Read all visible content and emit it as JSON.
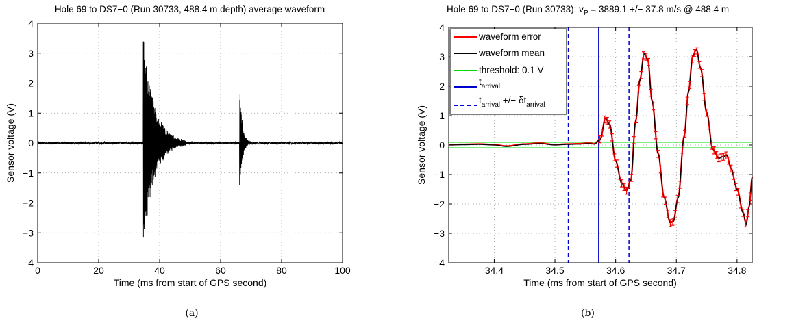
{
  "chart_data": [
    {
      "type": "line",
      "title": "Hole 69 to DS7−0 (Run 30733, 488.4 m depth) average waveform",
      "xlabel": "Time (ms from start of GPS second)",
      "ylabel": "Sensor voltage (V)",
      "xlim": [
        0,
        100
      ],
      "ylim": [
        -4,
        4
      ],
      "xticks": [
        "0",
        "20",
        "40",
        "60",
        "80",
        "100"
      ],
      "yticks": [
        "4",
        "3",
        "2",
        "1",
        "0",
        "−1",
        "−2",
        "−3",
        "−4"
      ],
      "grid": true,
      "series": [
        {
          "color": "#000000",
          "noise_amplitude": 0.04,
          "bursts": [
            {
              "start": 34.6,
              "peak_max": 3.7,
              "peak_min": -3.55,
              "decay_ms": 3.5,
              "duration_ms": 14
            },
            {
              "start": 66.2,
              "peak_max": 2.05,
              "peak_min": -1.65,
              "decay_ms": 0.9,
              "duration_ms": 4
            }
          ]
        }
      ],
      "caption": "(a)"
    },
    {
      "type": "line",
      "title": "Hole 69 to DS7−0 (Run 30733): v",
      "title_sub": "P",
      "title_rest": " = 3889.1 +/− 37.8 m/s @ 488.4 m",
      "xlabel": "Time (ms from start of GPS second)",
      "ylabel": "Sensor voltage (V)",
      "xlim": [
        34.325,
        34.825
      ],
      "ylim": [
        -4,
        4
      ],
      "xticks": [
        "34.4",
        "34.5",
        "34.6",
        "34.7",
        "34.8"
      ],
      "yticks": [
        "4",
        "3",
        "2",
        "1",
        "0",
        "−1",
        "−2",
        "−3",
        "−4"
      ],
      "grid": true,
      "threshold": 0.1,
      "t_arrival": 34.572,
      "dt_arrival": 0.05,
      "error_half_width": 0.12,
      "waveform_mean": {
        "color": "#000000",
        "points": [
          [
            34.325,
            0.0
          ],
          [
            34.35,
            0.01
          ],
          [
            34.375,
            0.02
          ],
          [
            34.4,
            0.0
          ],
          [
            34.42,
            -0.05
          ],
          [
            34.45,
            0.02
          ],
          [
            34.475,
            0.05
          ],
          [
            34.5,
            0.0
          ],
          [
            34.52,
            0.02
          ],
          [
            34.54,
            0.03
          ],
          [
            34.555,
            0.05
          ],
          [
            34.565,
            0.03
          ],
          [
            34.575,
            0.2
          ],
          [
            34.583,
            0.9
          ],
          [
            34.59,
            0.7
          ],
          [
            34.6,
            -0.55
          ],
          [
            34.61,
            -1.3
          ],
          [
            34.618,
            -1.55
          ],
          [
            34.625,
            -1.2
          ],
          [
            34.633,
            0.8
          ],
          [
            34.64,
            2.2
          ],
          [
            34.647,
            3.1
          ],
          [
            34.653,
            2.9
          ],
          [
            34.66,
            1.5
          ],
          [
            34.67,
            -0.3
          ],
          [
            34.68,
            -1.8
          ],
          [
            34.69,
            -2.65
          ],
          [
            34.695,
            -2.6
          ],
          [
            34.703,
            -1.8
          ],
          [
            34.713,
            0.3
          ],
          [
            34.72,
            1.8
          ],
          [
            34.727,
            3.0
          ],
          [
            34.733,
            3.25
          ],
          [
            34.74,
            2.6
          ],
          [
            34.75,
            1.1
          ],
          [
            34.76,
            -0.15
          ],
          [
            34.77,
            -0.45
          ],
          [
            34.777,
            -0.4
          ],
          [
            34.783,
            -0.35
          ],
          [
            34.79,
            -0.8
          ],
          [
            34.8,
            -1.5
          ],
          [
            34.81,
            -2.3
          ],
          [
            34.815,
            -2.7
          ],
          [
            34.82,
            -2.1
          ],
          [
            34.825,
            -1.1
          ]
        ]
      },
      "legend": {
        "placement": "top-left",
        "entries": [
          {
            "label": "waveform error",
            "color": "#ff0000",
            "style": "solid"
          },
          {
            "label": "waveform mean",
            "color": "#000000",
            "style": "solid"
          },
          {
            "label": "threshold: 0.1 V",
            "color": "#00dd00",
            "style": "solid"
          },
          {
            "label": "t",
            "sub": "arrival",
            "color": "#0000cc",
            "style": "solid"
          },
          {
            "label": "t",
            "sub": "arrival",
            "rest": " +/− δt",
            "sub2": "arrival",
            "color": "#0000cc",
            "style": "dashed"
          }
        ]
      },
      "caption": "(b)"
    }
  ]
}
